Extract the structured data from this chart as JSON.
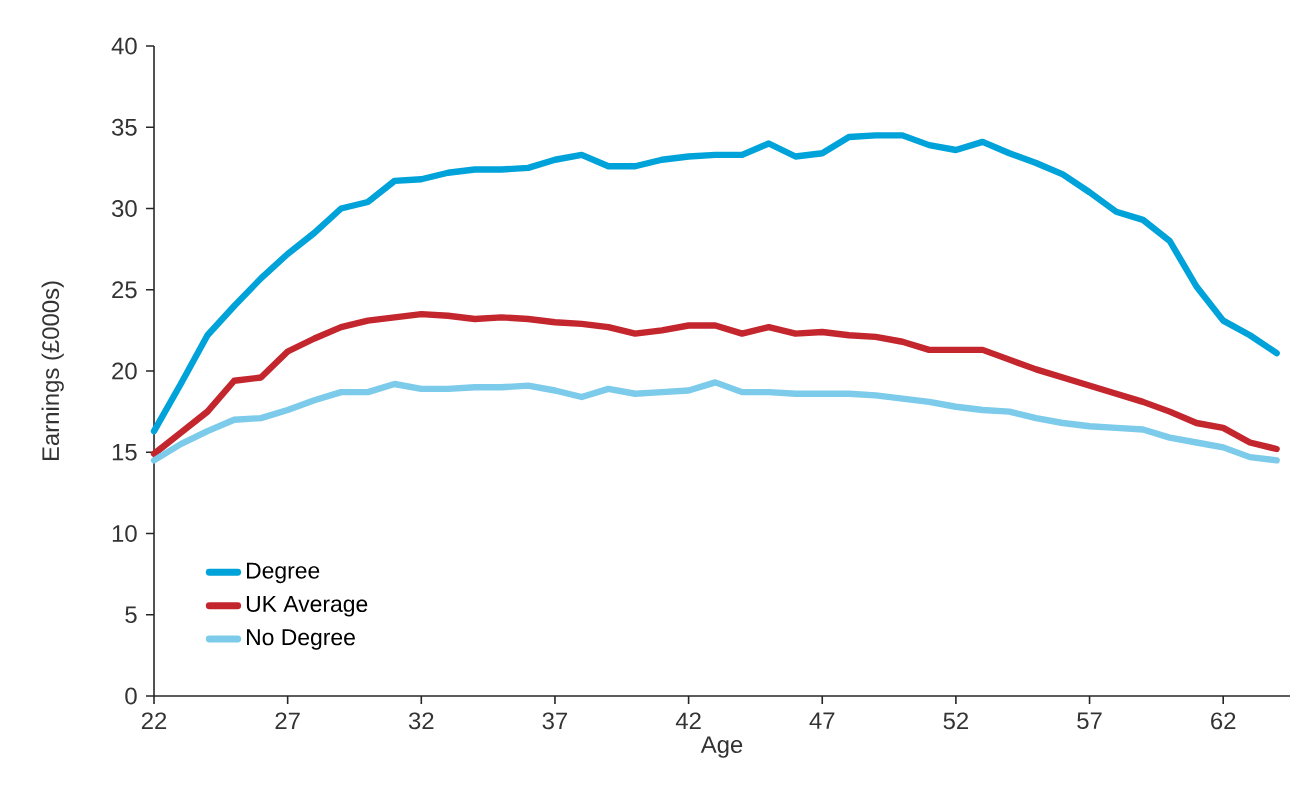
{
  "chart_data": {
    "type": "line",
    "xlabel": "Age",
    "ylabel": "Earnings (£000s)",
    "x": [
      22,
      23,
      24,
      25,
      26,
      27,
      28,
      29,
      30,
      31,
      32,
      33,
      34,
      35,
      36,
      37,
      38,
      39,
      40,
      41,
      42,
      43,
      44,
      45,
      46,
      47,
      48,
      49,
      50,
      51,
      52,
      53,
      54,
      55,
      56,
      57,
      58,
      59,
      60,
      61,
      62,
      63,
      64
    ],
    "series": [
      {
        "name": "Degree",
        "color": "#00a3d9",
        "values": [
          16.3,
          19.2,
          22.2,
          24,
          25.7,
          27.2,
          28.5,
          30,
          30.4,
          31.7,
          31.8,
          32.2,
          32.4,
          32.4,
          32.5,
          33,
          33.3,
          32.6,
          32.6,
          33,
          33.2,
          33.3,
          33.3,
          34,
          33.2,
          33.4,
          34.4,
          34.5,
          34.5,
          33.9,
          33.6,
          34.1,
          33.4,
          32.8,
          32.1,
          31.0,
          29.8,
          29.3,
          28.0,
          25.2,
          23.1,
          22.2,
          21.1
        ]
      },
      {
        "name": "UK Average",
        "color": "#c4262e",
        "values": [
          14.9,
          16.2,
          17.5,
          19.4,
          19.6,
          21.2,
          22,
          22.7,
          23.1,
          23.3,
          23.5,
          23.4,
          23.2,
          23.3,
          23.2,
          23.0,
          22.9,
          22.7,
          22.3,
          22.5,
          22.8,
          22.8,
          22.3,
          22.7,
          22.3,
          22.4,
          22.2,
          22.1,
          21.8,
          21.3,
          21.3,
          21.3,
          20.7,
          20.1,
          19.6,
          19.1,
          18.6,
          18.1,
          17.5,
          16.8,
          16.5,
          15.6,
          15.2
        ]
      },
      {
        "name": "No Degree",
        "color": "#7ccbea",
        "values": [
          14.5,
          15.5,
          16.3,
          17.0,
          17.1,
          17.6,
          18.2,
          18.7,
          18.7,
          19.2,
          18.9,
          18.9,
          19.0,
          19.0,
          19.1,
          18.8,
          18.4,
          18.9,
          18.6,
          18.7,
          18.8,
          19.3,
          18.7,
          18.7,
          18.6,
          18.6,
          18.6,
          18.5,
          18.3,
          18.1,
          17.8,
          17.6,
          17.5,
          17.1,
          16.8,
          16.6,
          16.5,
          16.4,
          15.9,
          15.6,
          15.3,
          14.7,
          14.5
        ]
      }
    ],
    "xlim": [
      22,
      64.5
    ],
    "ylim": [
      0,
      40
    ],
    "xticks": [
      22,
      27,
      32,
      37,
      42,
      47,
      52,
      57,
      62
    ],
    "yticks": [
      0,
      5,
      10,
      15,
      20,
      25,
      30,
      35,
      40
    ],
    "grid": false,
    "legend": "bottom left",
    "marker": "none",
    "line_style": "solid"
  }
}
